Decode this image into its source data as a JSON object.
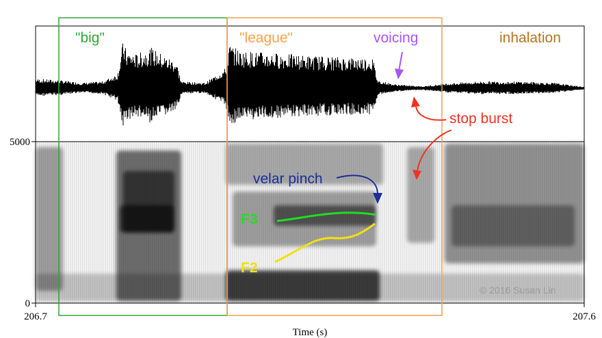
{
  "axis": {
    "y_top": "5000",
    "y_bottom": "0",
    "x_left": "206.7",
    "x_right": "207.6",
    "x_label": "Time (s)"
  },
  "annotations": {
    "big": "\"big\"",
    "league": "\"league\"",
    "voicing": "voicing",
    "inhalation": "inhalation",
    "stop_burst": "stop burst",
    "velar_pinch": "velar pinch",
    "f3": "F3",
    "f2": "F2"
  },
  "copyright": "© 2016 Susan Lin",
  "colors": {
    "big_box": "#2eaa2e",
    "league_box": "#f5a04a",
    "voicing": "#a855f7",
    "inhalation": "#b8731e",
    "stop_burst": "#ee3322",
    "velar_pinch": "#1a2e9a",
    "f3": "#22dd22",
    "f2": "#f2e011"
  }
}
